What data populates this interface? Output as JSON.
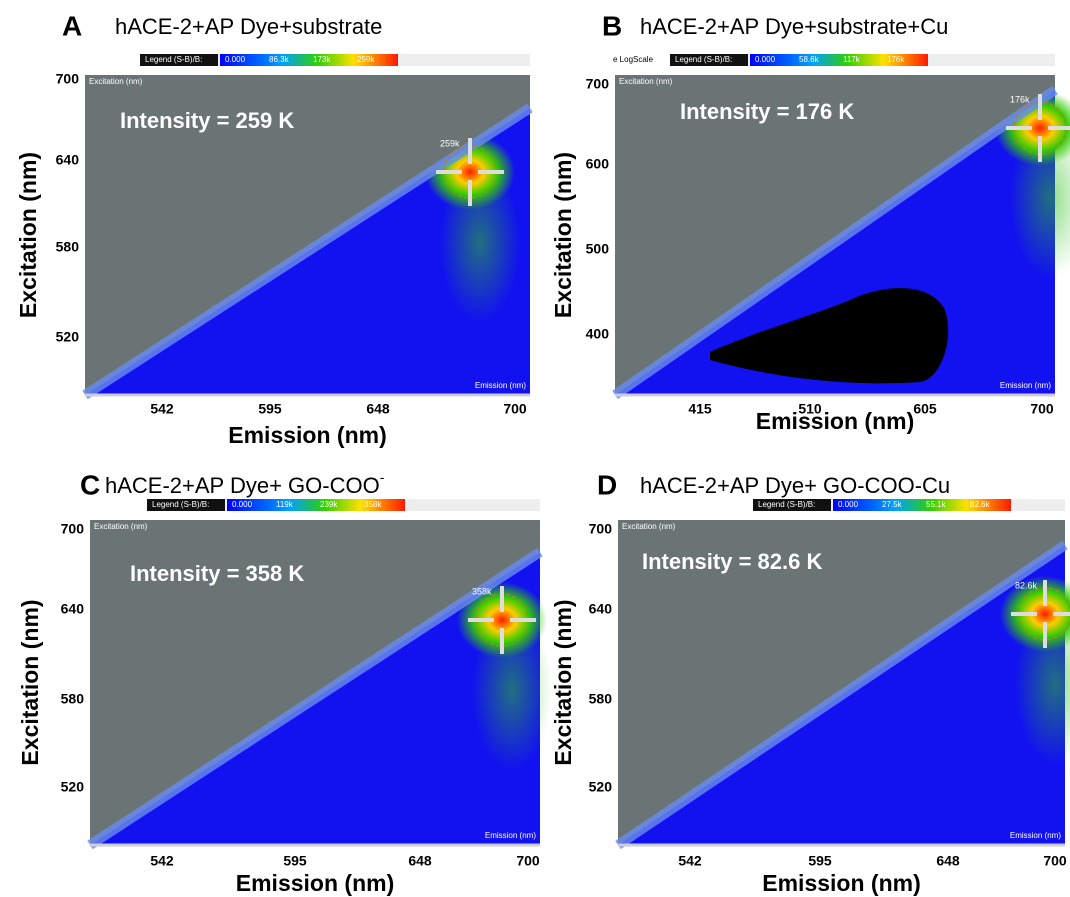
{
  "panels": [
    {
      "letter": "A",
      "title": "hACE-2+AP Dye+substrate",
      "legend": {
        "label": "Legend (S-B)/B:",
        "ticks": [
          "0.000",
          "86.3k",
          "173k",
          "259k"
        ]
      },
      "intensity": "Intensity = 259 K",
      "peak": "259k",
      "inner_y": "Excitation (nm)",
      "inner_x": "Emission (nm)",
      "yticks": [
        "700",
        "640",
        "580",
        "520"
      ],
      "xticks": [
        "542",
        "595",
        "648",
        "700"
      ],
      "ylabel": "Excitation (nm)",
      "xlabel": "Emission (nm)"
    },
    {
      "letter": "B",
      "title": "hACE-2+AP Dye+substrate+Cu",
      "prefix": "e LogScale",
      "legend": {
        "label": "Legend (S-B)/B:",
        "ticks": [
          "0.000",
          "58.6k",
          "117k",
          "176k"
        ]
      },
      "intensity": "Intensity = 176 K",
      "peak": "176k",
      "inner_y": "Excitation (nm)",
      "inner_x": "Emission (nm)",
      "yticks": [
        "700",
        "600",
        "500",
        "400"
      ],
      "xticks": [
        "415",
        "510",
        "605",
        "700"
      ],
      "ylabel": "Excitation (nm)",
      "xlabel": "Emission (nm)"
    },
    {
      "letter": "C",
      "title": "hACE-2+AP Dye+ GO-COO",
      "title_sup": "-",
      "legend": {
        "label": "Legend (S-B)/B:",
        "ticks": [
          "0.000",
          "119k",
          "239k",
          "358k"
        ]
      },
      "intensity": "Intensity = 358 K",
      "peak": "358k",
      "inner_y": "Excitation (nm)",
      "inner_x": "Emission (nm)",
      "yticks": [
        "700",
        "640",
        "580",
        "520"
      ],
      "xticks": [
        "542",
        "595",
        "648",
        "700"
      ],
      "ylabel": "Excitation (nm)",
      "xlabel": "Emission (nm)"
    },
    {
      "letter": "D",
      "title": "hACE-2+AP Dye+ GO-COO-Cu",
      "legend": {
        "label": "Legend (S-B)/B:",
        "ticks": [
          "0.000",
          "27.5k",
          "55.1k",
          "82.6k"
        ]
      },
      "intensity": "Intensity = 82.6 K",
      "peak": "82.6k",
      "inner_y": "Excitation (nm)",
      "inner_x": "Emission (nm)",
      "yticks": [
        "700",
        "640",
        "580",
        "520"
      ],
      "xticks": [
        "542",
        "595",
        "648",
        "700"
      ],
      "ylabel": "Excitation (nm)",
      "xlabel": "Emission (nm)"
    }
  ]
}
